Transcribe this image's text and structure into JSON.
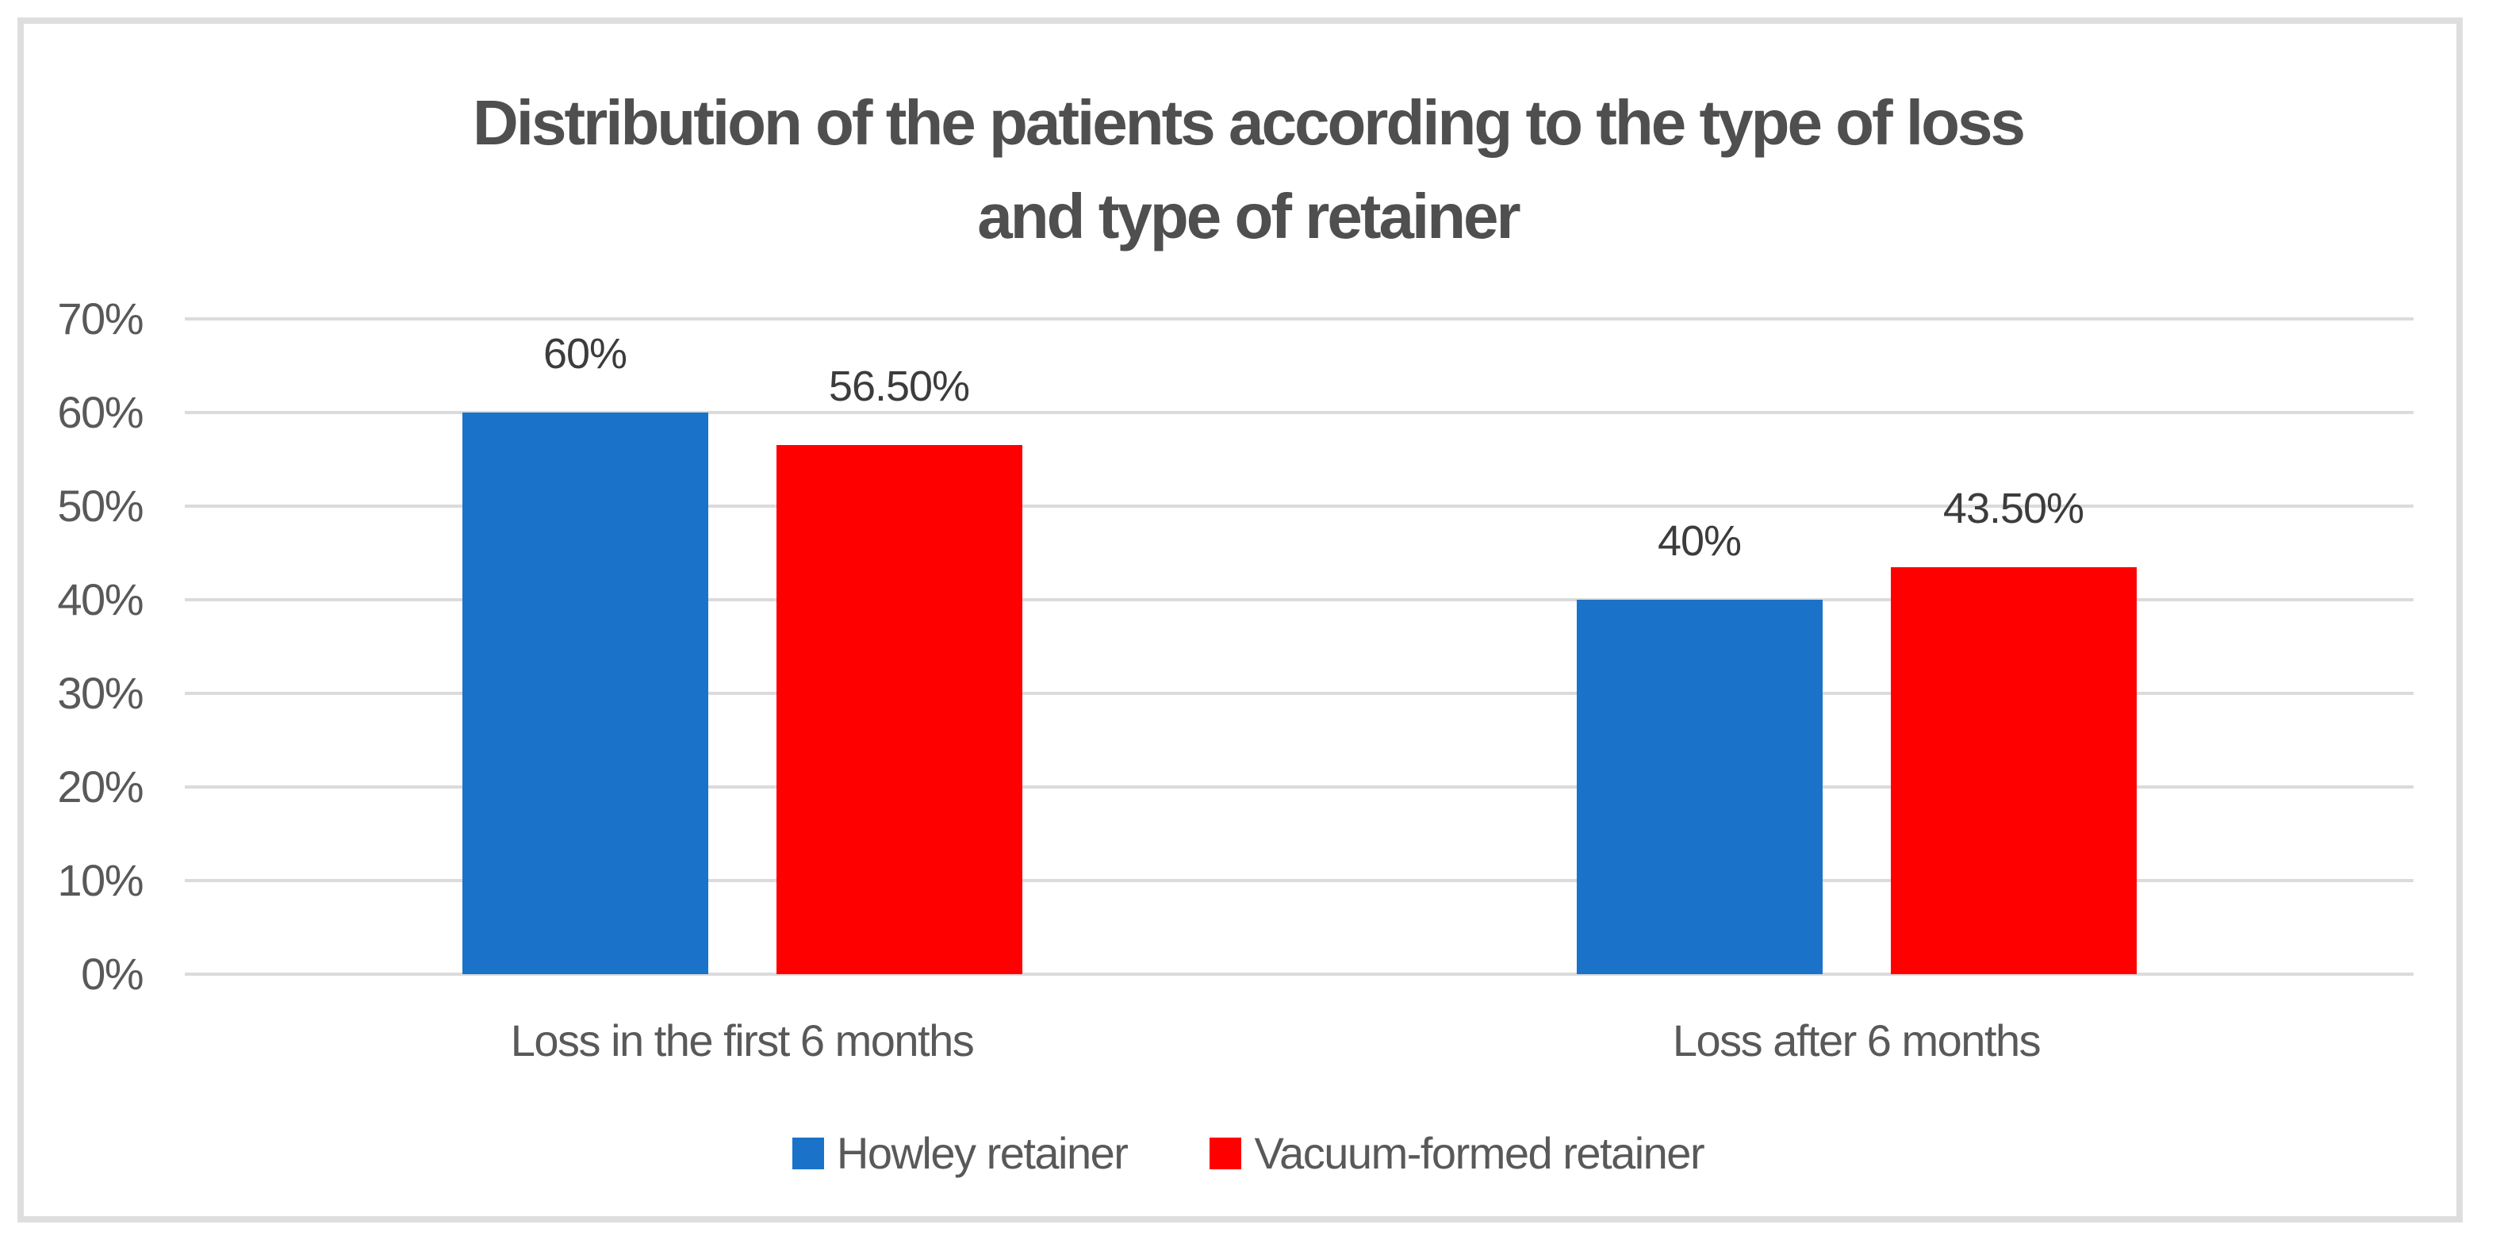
{
  "chart_data": {
    "type": "bar",
    "title": "Distribution of the patients according to the type of loss and type of retainer",
    "title_lines": [
      "Distribution of the patients according to the type of loss",
      "and type of retainer"
    ],
    "categories": [
      "Loss in the first 6 months",
      "Loss after 6 months"
    ],
    "series": [
      {
        "name": "Howley retainer",
        "color": "#1a73c8",
        "values": [
          60,
          40
        ],
        "data_labels": [
          "60%",
          "40%"
        ]
      },
      {
        "name": "Vacuum-formed retainer",
        "color": "#ff0000",
        "values": [
          56.5,
          43.5
        ],
        "data_labels": [
          "56.50%",
          "43.50%"
        ]
      }
    ],
    "y_axis": {
      "min": 0,
      "max": 70,
      "step": 10,
      "tick_labels": [
        "0%",
        "10%",
        "20%",
        "30%",
        "40%",
        "50%",
        "60%",
        "70%"
      ]
    },
    "grid": true,
    "legend_position": "bottom",
    "styles": {
      "background": "#ffffff",
      "frame_border_color": "#dedede",
      "grid_color": "#dbdbdb",
      "title_color": "#4f4f4f",
      "axis_text_color": "#595959",
      "data_label_color": "#3c3c3c"
    }
  }
}
